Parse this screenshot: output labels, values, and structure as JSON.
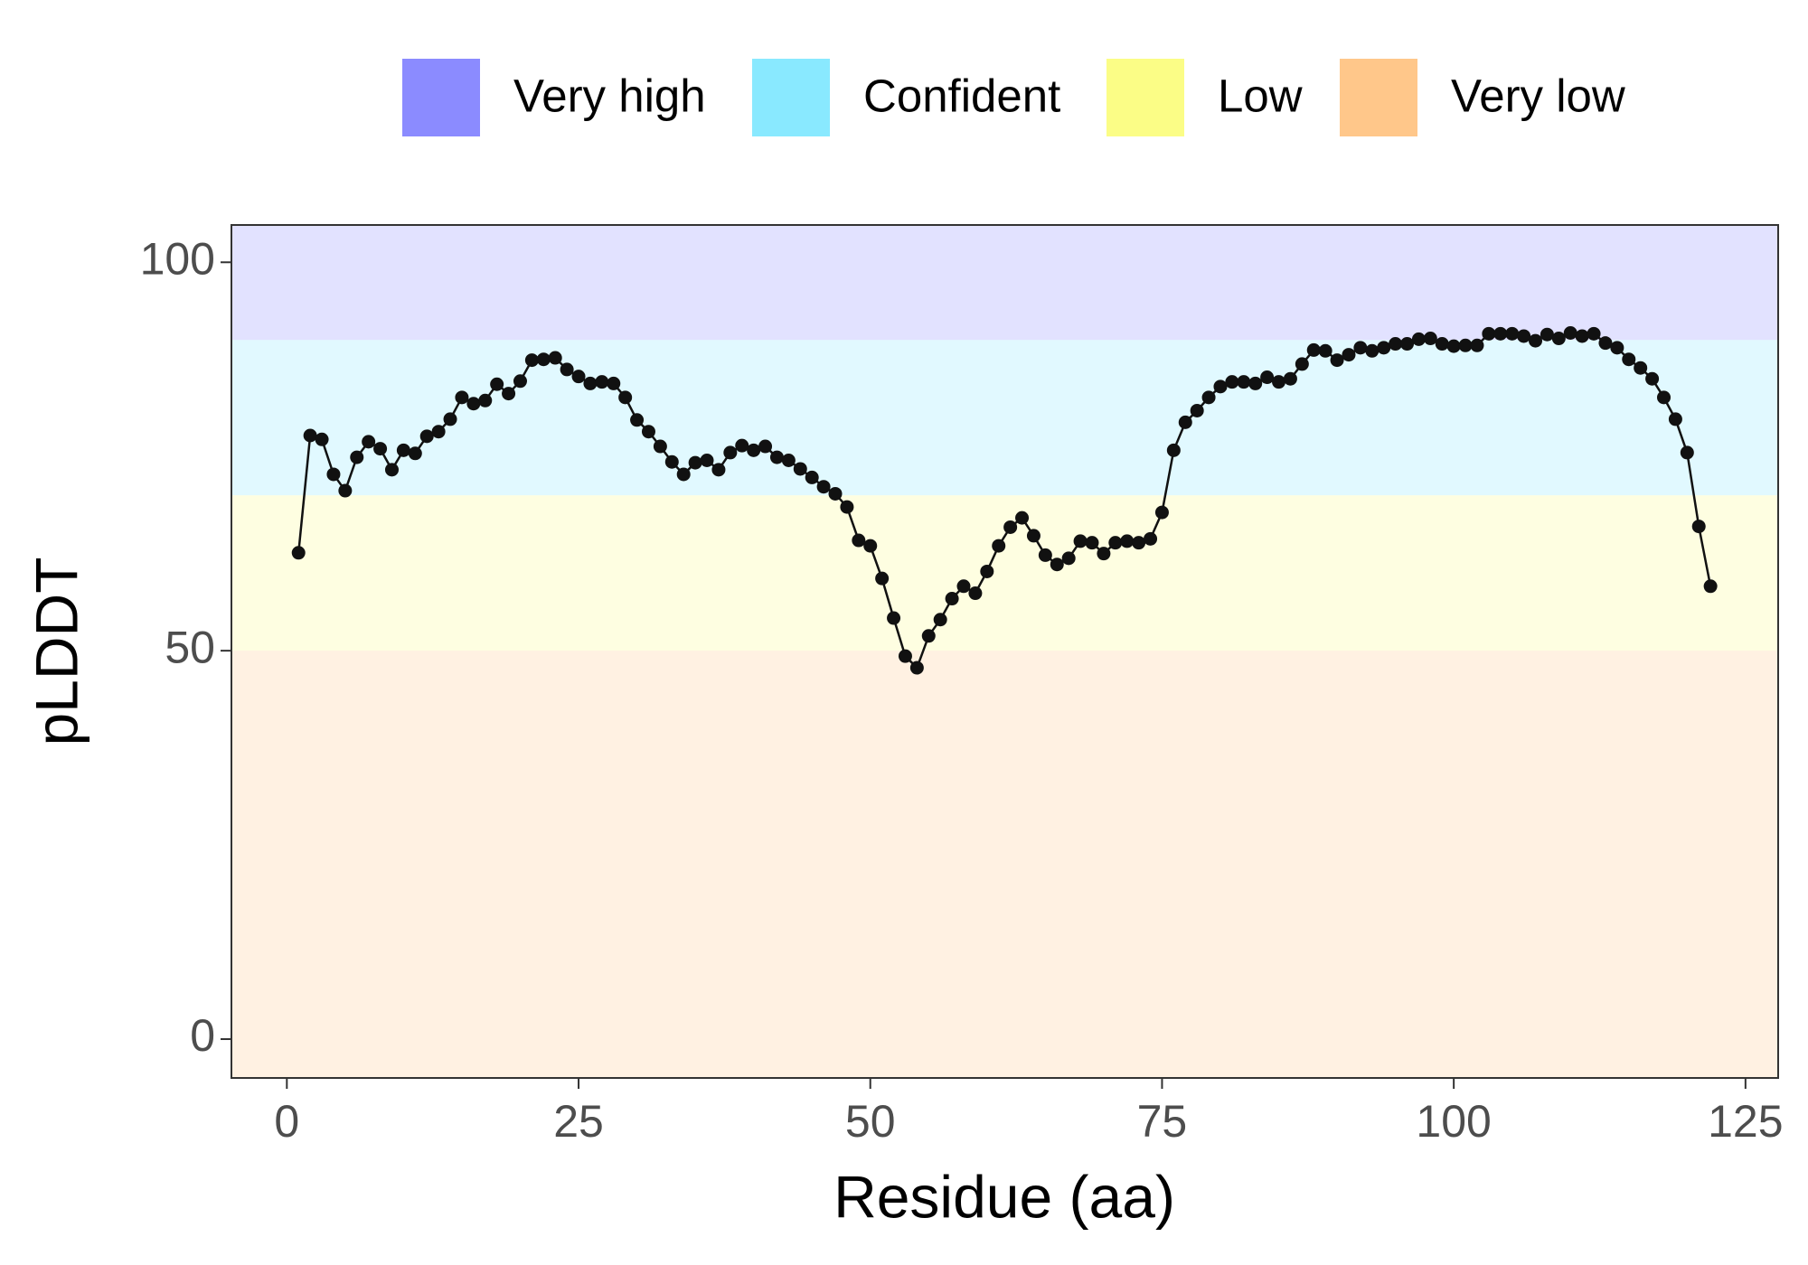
{
  "chart_data": {
    "type": "line",
    "x_label": "Residue (aa)",
    "y_label": "pLDDT",
    "bands": [
      {
        "name": "Very high",
        "color": "#8b8bff",
        "range": [
          90,
          100
        ]
      },
      {
        "name": "Confident",
        "color": "#89e9ff",
        "range": [
          70,
          90
        ]
      },
      {
        "name": "Low",
        "color": "#fbfd86",
        "range": [
          50,
          70
        ]
      },
      {
        "name": "Very low",
        "color": "#ffc78a",
        "range": [
          0,
          50
        ]
      }
    ],
    "legend": "top",
    "color": "#111111",
    "x": [
      1,
      2,
      3,
      4,
      5,
      6,
      7,
      8,
      9,
      10,
      11,
      12,
      13,
      14,
      15,
      16,
      17,
      18,
      19,
      20,
      21,
      22,
      23,
      24,
      25,
      26,
      27,
      28,
      29,
      30,
      31,
      32,
      33,
      34,
      35,
      36,
      37,
      38,
      39,
      40,
      41,
      42,
      43,
      44,
      45,
      46,
      47,
      48,
      49,
      50,
      51,
      52,
      53,
      54,
      55,
      56,
      57,
      58,
      59,
      60,
      61,
      62,
      63,
      64,
      65,
      66,
      67,
      68,
      69,
      70,
      71,
      72,
      73,
      74,
      75,
      76,
      77,
      78,
      79,
      80,
      81,
      82,
      83,
      84,
      85,
      86,
      87,
      88,
      89,
      90,
      91,
      92,
      93,
      94,
      95,
      96,
      97,
      98,
      99,
      100,
      101,
      102,
      103,
      104,
      105,
      106,
      107,
      108,
      109,
      110,
      111,
      112,
      113,
      114,
      115,
      116,
      117,
      118,
      119,
      120,
      121,
      122
    ],
    "values": [
      62.6,
      77.7,
      77.2,
      72.7,
      70.6,
      74.9,
      76.9,
      76.0,
      73.3,
      75.8,
      75.4,
      77.6,
      78.2,
      79.8,
      82.6,
      81.8,
      82.2,
      84.3,
      83.1,
      84.7,
      87.4,
      87.5,
      87.7,
      86.2,
      85.3,
      84.4,
      84.6,
      84.4,
      82.6,
      79.7,
      78.2,
      76.3,
      74.3,
      72.7,
      74.2,
      74.5,
      73.3,
      75.5,
      76.4,
      75.8,
      76.3,
      74.9,
      74.5,
      73.4,
      72.3,
      71.1,
      70.2,
      68.5,
      64.2,
      63.5,
      59.3,
      54.2,
      49.3,
      47.8,
      51.9,
      54.0,
      56.7,
      58.3,
      57.4,
      60.2,
      63.5,
      65.9,
      67.1,
      64.8,
      62.3,
      61.1,
      61.9,
      64.1,
      63.9,
      62.5,
      63.9,
      64.1,
      63.9,
      64.4,
      67.8,
      75.8,
      79.4,
      80.9,
      82.6,
      84.0,
      84.6,
      84.6,
      84.4,
      85.2,
      84.6,
      85.0,
      86.9,
      88.7,
      88.6,
      87.4,
      88.1,
      89.0,
      88.6,
      89.0,
      89.5,
      89.5,
      90.1,
      90.2,
      89.5,
      89.2,
      89.3,
      89.3,
      90.8,
      90.8,
      90.8,
      90.5,
      89.9,
      90.7,
      90.2,
      90.9,
      90.5,
      90.8,
      89.6,
      89.0,
      87.5,
      86.4,
      85.0,
      82.6,
      79.8,
      75.5,
      66.0,
      58.3
    ],
    "xlim": [
      -4.75,
      127.8
    ],
    "xticks": [
      0,
      25,
      50,
      75,
      100,
      125
    ],
    "ylim": [
      -5,
      104.8
    ],
    "yticks": [
      0,
      50,
      100
    ]
  }
}
